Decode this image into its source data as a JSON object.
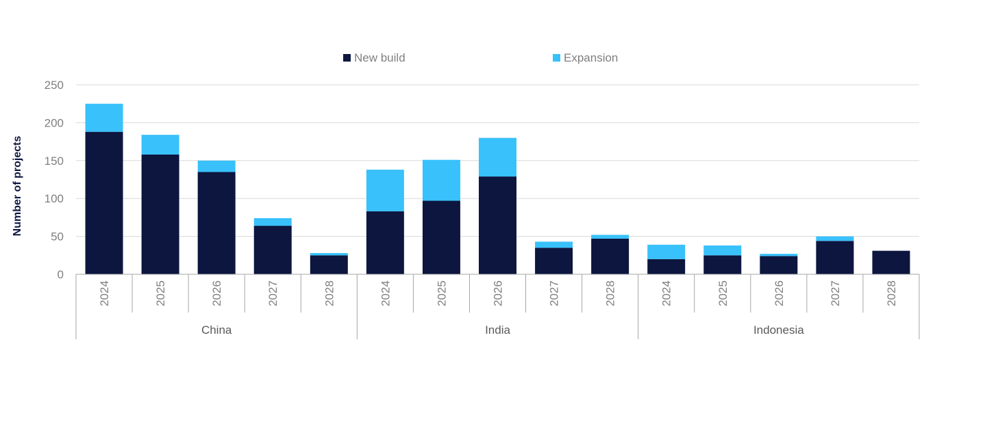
{
  "chart_data": {
    "type": "bar",
    "stacked": true,
    "title": "",
    "xlabel": "",
    "ylabel": "Number of projects",
    "ylim": [
      0,
      250
    ],
    "yticks": [
      0,
      50,
      100,
      150,
      200,
      250
    ],
    "grid": true,
    "legend_position": "top",
    "groups": [
      {
        "name": "China",
        "categories": [
          "2024",
          "2025",
          "2026",
          "2027",
          "2028"
        ]
      },
      {
        "name": "India",
        "categories": [
          "2024",
          "2025",
          "2026",
          "2027",
          "2028"
        ]
      },
      {
        "name": "Indonesia",
        "categories": [
          "2024",
          "2025",
          "2026",
          "2027",
          "2028"
        ]
      }
    ],
    "series": [
      {
        "name": "New build",
        "color": "#0c163f",
        "values": [
          188,
          158,
          135,
          64,
          25,
          83,
          97,
          129,
          35,
          47,
          20,
          25,
          24,
          44,
          31
        ]
      },
      {
        "name": "Expansion",
        "color": "#38c1fb",
        "values": [
          37,
          26,
          15,
          10,
          3,
          55,
          54,
          51,
          8,
          5,
          19,
          13,
          3,
          6,
          0
        ]
      }
    ]
  }
}
